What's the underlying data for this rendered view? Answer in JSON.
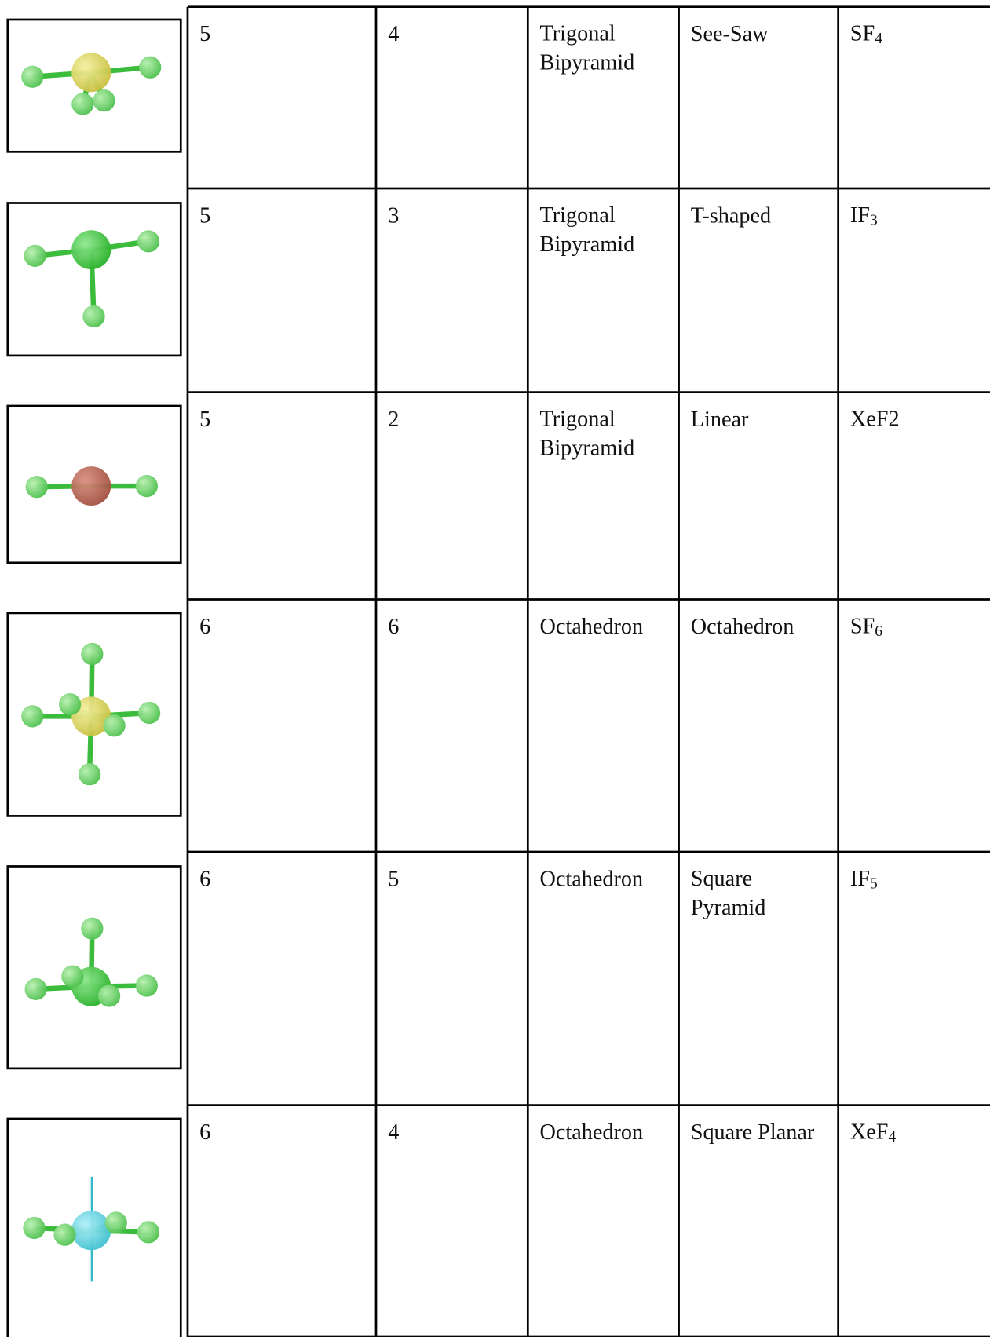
{
  "table": {
    "rows": [
      [
        "5",
        "4",
        "Trigonal Bipyramid",
        "See-Saw",
        {
          "text": "SF",
          "sub": "4"
        }
      ],
      [
        "5",
        "3",
        "Trigonal Bipyramid",
        "T-shaped",
        {
          "text": "IF",
          "sub": "3"
        }
      ],
      [
        "5",
        "2",
        "Trigonal Bipyramid",
        "Linear",
        {
          "text": "XeF2"
        }
      ],
      [
        "6",
        "6",
        "Octahedron",
        "Octahedron",
        {
          "text": "SF",
          "sub": "6"
        }
      ],
      [
        "6",
        "5",
        "Octahedron",
        "Square Pyramid",
        {
          "text": "IF",
          "sub": "5"
        }
      ],
      [
        "6",
        "4",
        "Octahedron",
        "Square Planar",
        {
          "text": "XeF",
          "sub": "4"
        }
      ]
    ]
  }
}
